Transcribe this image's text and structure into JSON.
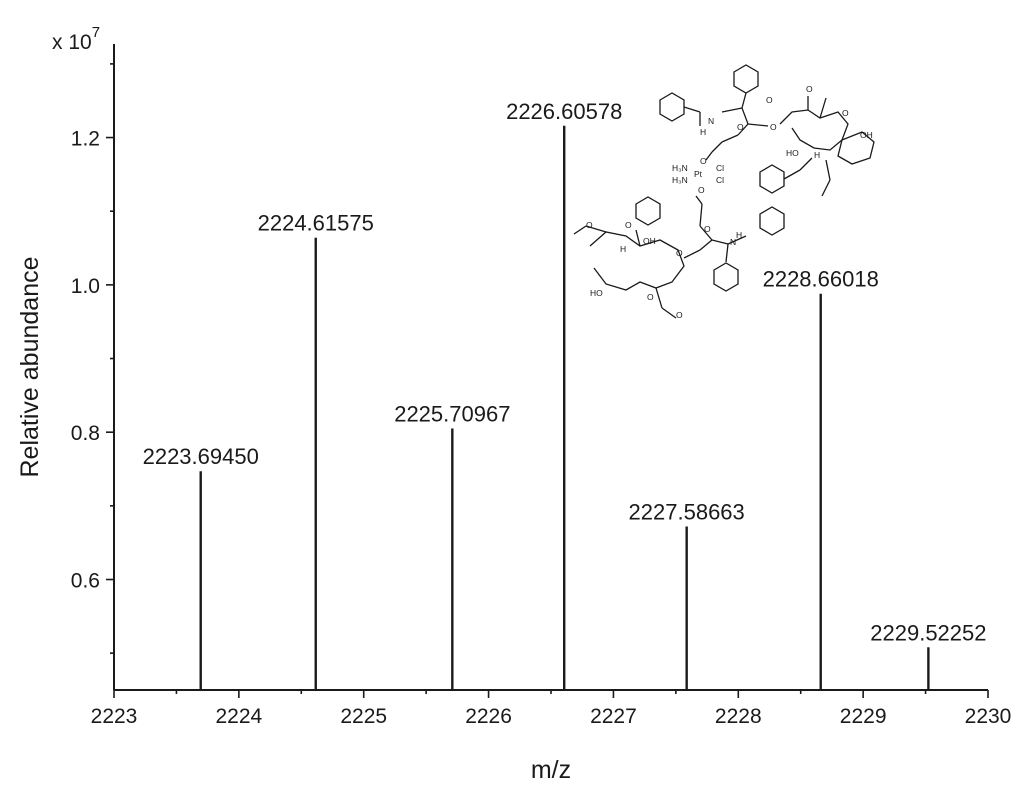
{
  "chart_data": {
    "type": "bar",
    "xlabel": "m/z",
    "ylabel": "Relative abundance",
    "y_multiplier": "x 10",
    "y_multiplier_exponent": "7",
    "xlim": [
      2223,
      2230
    ],
    "ylim": [
      0.45,
      1.327
    ],
    "x_ticks": [
      2223,
      2224,
      2225,
      2226,
      2227,
      2228,
      2229,
      2230
    ],
    "x_tick_labels": [
      "2223",
      "2224",
      "2225",
      "2226",
      "2227",
      "2228",
      "2229",
      "2230"
    ],
    "y_ticks": [
      0.6,
      0.8,
      1.0,
      1.2
    ],
    "y_tick_labels": [
      "0.6",
      "0.8",
      "1.0",
      "1.2"
    ],
    "grid": false,
    "series": [
      {
        "x": [
          2223.6945,
          2224.61575,
          2225.70967,
          2226.60578,
          2227.58663,
          2228.66018,
          2229.52252
        ],
        "values": [
          0.747,
          1.064,
          0.805,
          1.216,
          0.672,
          0.988,
          0.508
        ],
        "labels": [
          "2223.69450",
          "2224.61575",
          "2225.70967",
          "2226.60578",
          "2227.58663",
          "2228.66018",
          "2229.52252"
        ]
      }
    ],
    "inset_structure": {
      "labels": [
        "H",
        "N",
        "O",
        "O",
        "O",
        "O",
        "O",
        "OH",
        "HO",
        "H",
        "H₃N",
        "H₃N",
        "Pt",
        "Cl",
        "Cl",
        "O",
        "O",
        "H",
        "OH",
        "O",
        "O",
        "O",
        "N",
        "H",
        "O",
        "HO",
        "O",
        "O"
      ]
    }
  }
}
